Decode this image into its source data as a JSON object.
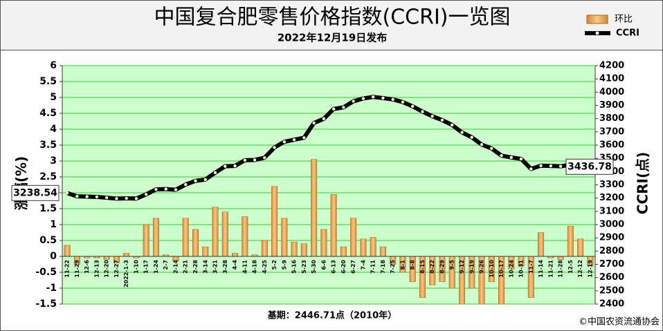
{
  "chart_data": {
    "type": "bar",
    "title": "中国复合肥零售价格指数(CCRI)一览图",
    "subtitle": "2022年12月19日发布",
    "y_label": "涨幅(%)",
    "y2_label": "CCRI(点)",
    "base_note": "基期：2446.71点（2010年）",
    "source": "©中国农资流通协会",
    "categories": [
      "11-22",
      "11-29",
      "12-6",
      "12-13",
      "12-20",
      "12-27",
      "2022-1-3",
      "1-10",
      "1-17",
      "1-24",
      "2-7",
      "2-14",
      "2-21",
      "2-28",
      "3-14",
      "3-21",
      "3-28",
      "4-4",
      "4-11",
      "4-18",
      "4-25",
      "5-2",
      "5-9",
      "5-16",
      "5-23",
      "5-30",
      "6-6",
      "6-13",
      "6-20",
      "6-27",
      "7-4",
      "7-11",
      "7-18",
      "7-25",
      "8-1",
      "8-8",
      "8-15",
      "8-22",
      "8-29",
      "9-5",
      "9-12",
      "9-19",
      "9-26",
      "10-10",
      "10-17",
      "10-24",
      "10-31",
      "11-7",
      "11-14",
      "11-21",
      "11-28",
      "12-5",
      "12-12",
      "12-19"
    ],
    "series": [
      {
        "name": "环比",
        "type": "bar",
        "axis": "y",
        "color": "#d4892f",
        "values": [
          0.35,
          -0.25,
          -0.05,
          -0.05,
          -0.1,
          -0.2,
          0.1,
          -0.05,
          1.0,
          1.2,
          0.05,
          -0.15,
          1.2,
          0.85,
          0.3,
          1.55,
          1.4,
          0.1,
          1.25,
          0.05,
          0.5,
          2.2,
          1.2,
          0.45,
          0.4,
          3.05,
          0.85,
          1.95,
          0.3,
          1.2,
          0.55,
          0.6,
          0.3,
          -0.25,
          -0.5,
          -0.8,
          -1.3,
          -0.9,
          -0.8,
          -1.0,
          -1.5,
          -1.0,
          -1.5,
          -0.8,
          -1.5,
          -0.4,
          -0.3,
          -1.3,
          0.75,
          -0.05,
          -0.1,
          0.95,
          0.55,
          -0.3
        ]
      },
      {
        "name": "CCRI",
        "type": "line",
        "axis": "y2",
        "color": "#000000",
        "values": [
          3238.54,
          3213,
          3211,
          3209,
          3203,
          3196,
          3198,
          3196,
          3228,
          3266,
          3268,
          3263,
          3302,
          3330,
          3340,
          3392,
          3440,
          3443,
          3486,
          3488,
          3505,
          3582,
          3625,
          3641,
          3656,
          3767,
          3799,
          3873,
          3885,
          3931,
          3952,
          3964,
          3955,
          3945,
          3925,
          3893,
          3853,
          3818,
          3789,
          3752,
          3696,
          3659,
          3604,
          3575,
          3521,
          3507,
          3496,
          3420,
          3445,
          3443,
          3440,
          3452,
          3448,
          3436.78
        ]
      }
    ],
    "ylim": [
      -1.5,
      6
    ],
    "yticks": [
      -1.5,
      -1,
      -0.5,
      0,
      0.5,
      1,
      1.5,
      2,
      2.5,
      3,
      3.5,
      4,
      4.5,
      5,
      5.5,
      6
    ],
    "y2lim": [
      2400,
      4200
    ],
    "y2ticks": [
      2400,
      2500,
      2600,
      2700,
      2800,
      2900,
      3000,
      3100,
      3200,
      3300,
      3400,
      3500,
      3600,
      3700,
      3800,
      3900,
      4000,
      4100,
      4200
    ],
    "grid": true,
    "legend": "top-right"
  }
}
